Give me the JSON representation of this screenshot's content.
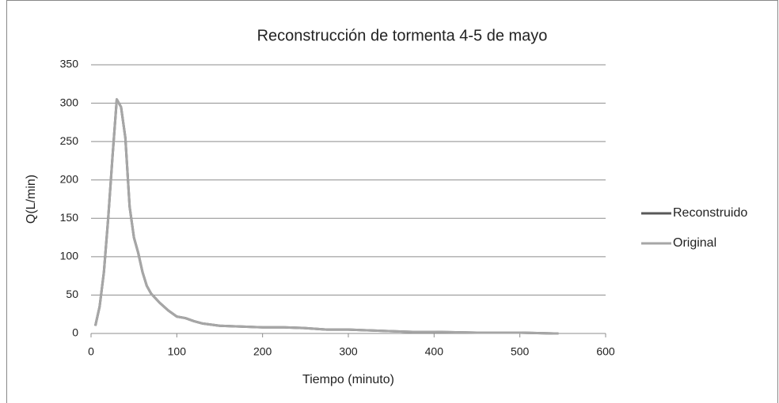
{
  "chart_data": {
    "type": "line",
    "title": "Reconstrucción de tormenta 4-5 de mayo",
    "x_label": "Tiempo (minuto)",
    "y_label": "Q(L/min)",
    "x": [
      5,
      10,
      15,
      20,
      25,
      30,
      35,
      40,
      45,
      50,
      55,
      60,
      65,
      70,
      80,
      90,
      100,
      110,
      120,
      130,
      150,
      175,
      200,
      225,
      250,
      275,
      300,
      325,
      350,
      375,
      400,
      450,
      500,
      540,
      545
    ],
    "series": [
      {
        "name": "Reconstruido",
        "color": "#595959",
        "values": [
          10,
          35,
          80,
          150,
          230,
          305,
          295,
          255,
          165,
          125,
          105,
          80,
          62,
          52,
          40,
          30,
          22,
          20,
          16,
          13,
          10,
          9,
          8,
          8,
          7,
          5,
          5,
          4,
          3,
          2,
          2,
          1,
          1,
          0,
          0
        ]
      },
      {
        "name": "Original",
        "color": "#a6a6a6",
        "values": [
          10,
          35,
          80,
          150,
          230,
          305,
          295,
          255,
          165,
          125,
          105,
          80,
          62,
          52,
          40,
          30,
          22,
          20,
          16,
          13,
          10,
          9,
          8,
          8,
          7,
          5,
          5,
          4,
          3,
          2,
          2,
          1,
          1,
          0,
          0
        ]
      }
    ],
    "xlim": [
      0,
      600
    ],
    "xticks": [
      0,
      100,
      200,
      300,
      400,
      500,
      600
    ],
    "ylim": [
      0,
      350
    ],
    "yticks": [
      0,
      50,
      100,
      150,
      200,
      250,
      300,
      350
    ],
    "grid": true,
    "legend": "right"
  }
}
